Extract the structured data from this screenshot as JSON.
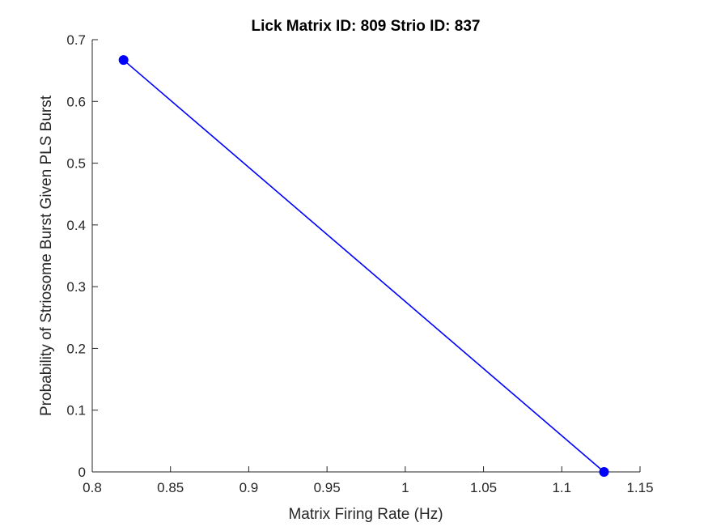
{
  "chart_data": {
    "type": "line",
    "title": "Lick Matrix ID: 809 Strio ID: 837",
    "xlabel": "Matrix Firing Rate (Hz)",
    "ylabel": "Probability of Striosome Burst Given PLS Burst",
    "xlim": [
      0.8,
      1.15
    ],
    "ylim": [
      0,
      0.7
    ],
    "xticks": [
      "0.8",
      "0.85",
      "0.9",
      "0.95",
      "1",
      "1.05",
      "1.1",
      "1.15"
    ],
    "yticks": [
      "0",
      "0.1",
      "0.2",
      "0.3",
      "0.4",
      "0.5",
      "0.6",
      "0.7"
    ],
    "grid": false,
    "series": [
      {
        "x": [
          0.82,
          1.127
        ],
        "y": [
          0.667,
          0.0
        ],
        "color": "#0000ff",
        "marker": "circle"
      }
    ]
  }
}
